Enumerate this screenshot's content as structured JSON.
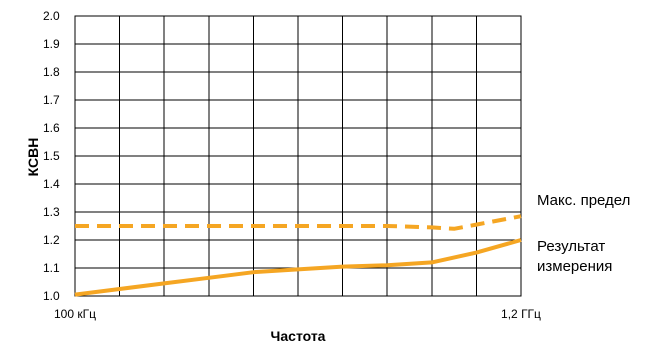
{
  "chart_data": {
    "type": "line",
    "title": "",
    "xlabel": "Частота",
    "ylabel": "КСВН",
    "x_tick_labels": [
      {
        "label": "100 кГц",
        "x": 0
      },
      {
        "label": "1,2 ГГц",
        "x": 10
      }
    ],
    "x_gridlines": 10,
    "xlim": [
      0,
      10
    ],
    "ylim": [
      1.0,
      2.0
    ],
    "y_ticks": [
      "1.0",
      "1.1",
      "1.2",
      "1.3",
      "1.4",
      "1.5",
      "1.6",
      "1.7",
      "1.8",
      "1.9",
      "2.0"
    ],
    "grid": true,
    "series": [
      {
        "name": "Макс. предел",
        "style": "dashed",
        "color": "#F5A623",
        "x": [
          0,
          1,
          2,
          3,
          4,
          5,
          6,
          7,
          8,
          8.5,
          9,
          10
        ],
        "y": [
          1.25,
          1.25,
          1.25,
          1.25,
          1.25,
          1.25,
          1.25,
          1.25,
          1.245,
          1.24,
          1.255,
          1.285
        ]
      },
      {
        "name": "Результат измерения",
        "name_lines": [
          "Результат",
          "измерения"
        ],
        "style": "solid",
        "color": "#F5A623",
        "x": [
          0,
          1,
          2,
          3,
          4,
          5,
          6,
          7,
          8,
          9,
          10
        ],
        "y": [
          1.005,
          1.025,
          1.045,
          1.065,
          1.085,
          1.095,
          1.105,
          1.11,
          1.12,
          1.155,
          1.2
        ]
      }
    ]
  }
}
